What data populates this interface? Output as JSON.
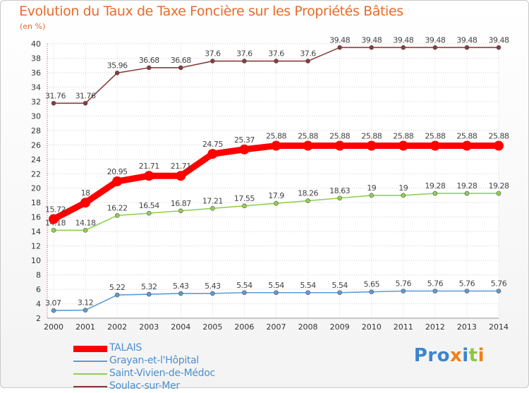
{
  "page": {
    "title": "Evolution du Taux de Taxe Foncière sur les Propriétés Bâties",
    "unit_label": "(en %)",
    "brand": {
      "part1": "Pro",
      "part2": "x",
      "part3": "i",
      "part4": "t",
      "part5": "i"
    }
  },
  "chart_data": {
    "type": "line",
    "title": "Evolution du Taux de Taxe Foncière sur les Propriétés Bâties",
    "ylabel": "(en %)",
    "xlabel": "",
    "ylim": [
      2,
      40
    ],
    "yticks": [
      2,
      4,
      6,
      8,
      10,
      12,
      14,
      16,
      18,
      20,
      22,
      24,
      26,
      28,
      30,
      32,
      34,
      36,
      38,
      40
    ],
    "grid": true,
    "legend_position": "bottom-left",
    "categories": [
      "2000",
      "2001",
      "2002",
      "2003",
      "2004",
      "2005",
      "2006",
      "2007",
      "2008",
      "2009",
      "2010",
      "2011",
      "2012",
      "2013",
      "2014"
    ],
    "series": [
      {
        "name": "TALAIS",
        "color": "#ff0000",
        "emphasis": true,
        "values": [
          15.72,
          18,
          20.95,
          21.71,
          21.71,
          24.75,
          25.37,
          25.88,
          25.88,
          25.88,
          25.88,
          25.88,
          25.88,
          25.88,
          25.88
        ],
        "labels": [
          "15.72",
          "18",
          "20.95",
          "21.71",
          "21.71",
          "24.75",
          "25.37",
          "25.88",
          "25.88",
          "25.88",
          "25.88",
          "25.88",
          "25.88",
          "25.88",
          "25.88"
        ]
      },
      {
        "name": "Grayan-et-l'Hôpital",
        "color": "#5b9bd5",
        "emphasis": false,
        "values": [
          3.07,
          3.12,
          5.22,
          5.32,
          5.43,
          5.43,
          5.54,
          5.54,
          5.54,
          5.54,
          5.65,
          5.76,
          5.76,
          5.76,
          5.76
        ],
        "labels": [
          "3.07",
          "3.12",
          "5.22",
          "5.32",
          "5.43",
          "5.43",
          "5.54",
          "5.54",
          "5.54",
          "5.54",
          "5.65",
          "5.76",
          "5.76",
          "5.76",
          "5.76"
        ]
      },
      {
        "name": "Saint-Vivien-de-Médoc",
        "color": "#92d050",
        "emphasis": false,
        "values": [
          14.18,
          14.18,
          16.22,
          16.54,
          16.87,
          17.21,
          17.55,
          17.9,
          18.26,
          18.63,
          19,
          19,
          19.28,
          19.28,
          19.28
        ],
        "labels": [
          "14.18",
          "14.18",
          "16.22",
          "16.54",
          "16.87",
          "17.21",
          "17.55",
          "17.9",
          "18.26",
          "18.63",
          "19",
          "19",
          "19.28",
          "19.28",
          "19.28"
        ]
      },
      {
        "name": "Soulac-sur-Mer",
        "color": "#8b3a3a",
        "emphasis": false,
        "values": [
          31.76,
          31.76,
          35.96,
          36.68,
          36.68,
          37.6,
          37.6,
          37.6,
          37.6,
          39.48,
          39.48,
          39.48,
          39.48,
          39.48,
          39.48
        ],
        "labels": [
          "31.76",
          "31.76",
          "35.96",
          "36.68",
          "36.68",
          "37.6",
          "37.6",
          "37.6",
          "37.6",
          "39.48",
          "39.48",
          "39.48",
          "39.48",
          "39.48",
          "39.48"
        ]
      }
    ]
  }
}
